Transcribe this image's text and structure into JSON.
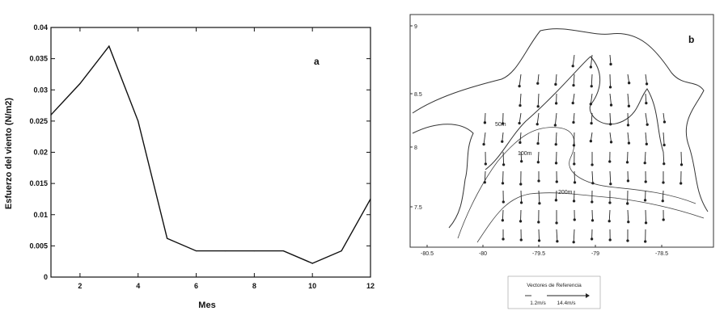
{
  "chart_data": [
    {
      "type": "line",
      "panel_label": "a",
      "xlabel": "Mes",
      "ylabel": "Esfuerzo del viento (N/m2)",
      "xlim": [
        1,
        12
      ],
      "ylim": [
        0,
        0.04
      ],
      "xticks": [
        "2",
        "4",
        "6",
        "8",
        "10",
        "12"
      ],
      "yticks": [
        "0",
        "0.005",
        "0.01",
        "0.015",
        "0.02",
        "0.025",
        "0.03",
        "0.035",
        "0.04"
      ],
      "x": [
        1,
        2,
        3,
        4,
        5,
        6,
        7,
        8,
        9,
        10,
        11,
        12
      ],
      "y": [
        0.026,
        0.031,
        0.037,
        0.025,
        0.0062,
        0.0042,
        0.0042,
        0.0042,
        0.0042,
        0.0022,
        0.0042,
        0.0125
      ],
      "grid": false
    },
    {
      "type": "vector_map",
      "panel_label": "b",
      "xticks": [
        "-80.5",
        "-80",
        "-79.5",
        "-79",
        "-78.5"
      ],
      "yticks": [
        "9",
        "8.5",
        "8",
        "7.5"
      ],
      "contour_labels": [
        "50m",
        "100m",
        "200m"
      ],
      "legend_title": "Vectores de Referencia",
      "legend_scale": "1.2m/s",
      "legend_scale_2": "14.4m/s"
    }
  ]
}
